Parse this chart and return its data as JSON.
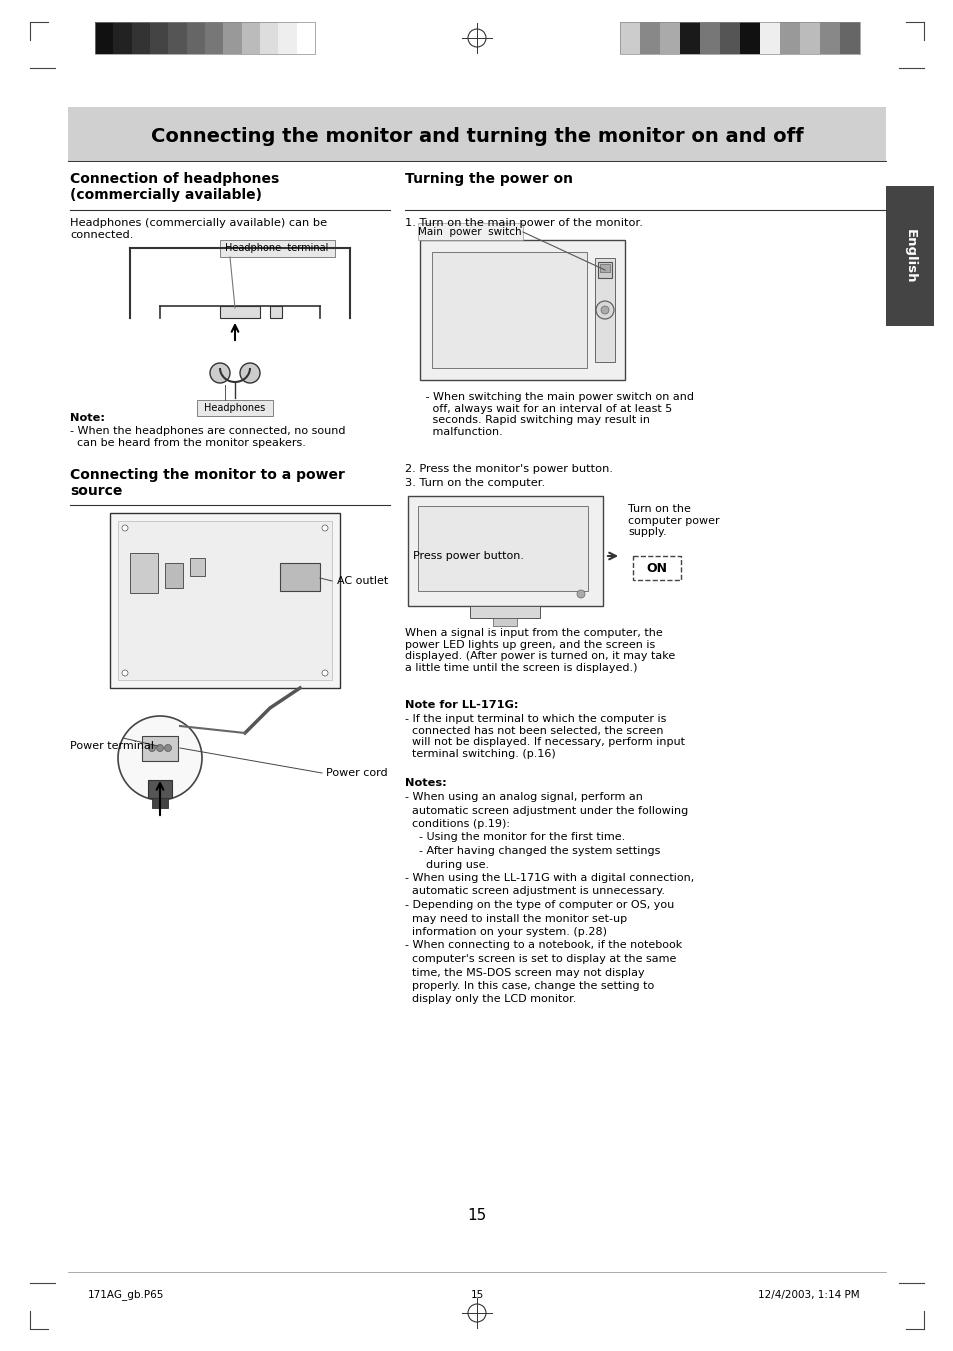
{
  "page_bg": "#ffffff",
  "header_bg": "#d0d0d0",
  "header_text": "Connecting the monitor and turning the monitor on and off",
  "sidebar_bg": "#444444",
  "sidebar_text": "English",
  "section1_title": "Connection of headphones\n(commercially available)",
  "section1_body": "Headphones (commercially available) can be\nconnected.",
  "section1_note_title": "Note:",
  "section1_note": "- When the headphones are connected, no sound\n  can be heard from the monitor speakers.",
  "section2_title": "Connecting the monitor to a power\nsource",
  "section3_title": "Turning the power on",
  "step1": "1. Turn on the main power of the monitor.",
  "main_power_switch": "Main  power  switch",
  "step1_note": "   - When switching the main power switch on and\n     off, always wait for an interval of at least 5\n     seconds. Rapid switching may result in\n     malfunction.",
  "step2": "2. Press the monitor's power button.",
  "step3": "3. Turn on the computer.",
  "press_power_btn": "Press power button.",
  "turn_on_computer": "Turn on the\ncomputer power\nsupply.",
  "signal_note": "When a signal is input from the computer, the\npower LED lights up green, and the screen is\ndisplayed. (After power is turned on, it may take\na little time until the screen is displayed.)",
  "note_ll171g_title": "Note for LL-171G:",
  "note_ll171g": "- If the input terminal to which the computer is\n  connected has not been selected, the screen\n  will not be displayed. If necessary, perform input\n  terminal switching. (p.16)",
  "notes_title": "Notes:",
  "notes_line1": "- When using an analog signal, perform an",
  "notes_line2": "  automatic screen adjustment under the following",
  "notes_line3": "  conditions (p.19):",
  "notes_line4": "    - Using the monitor for the first time.",
  "notes_line5": "    - After having changed the system settings",
  "notes_line6": "      during use.",
  "notes_line7": "- When using the LL-171G with a digital connection,",
  "notes_line8": "  automatic screen adjustment is unnecessary.",
  "notes_line9": "- Depending on the type of computer or OS, you",
  "notes_line10": "  may need to install the monitor set-up",
  "notes_line11": "  information on your system. (p.28)",
  "notes_line12": "- When connecting to a notebook, if the notebook",
  "notes_line13": "  computer's screen is set to display at the same",
  "notes_line14": "  time, the MS-DOS screen may not display",
  "notes_line15": "  properly. In this case, change the setting to",
  "notes_line16": "  display only the LCD monitor.",
  "page_number": "15",
  "footer_left": "171AG_gb.P65",
  "footer_center": "15",
  "footer_right": "12/4/2003, 1:14 PM",
  "headphone_terminal_label": "Headphone  terminal",
  "headphones_label": "Headphones",
  "power_terminal_label": "Power terminal",
  "ac_outlet_label": "AC outlet",
  "power_cord_label": "Power cord",
  "strip1_colors": [
    "#111111",
    "#222222",
    "#333333",
    "#444444",
    "#555555",
    "#666666",
    "#777777",
    "#999999",
    "#bbbbbb",
    "#dddddd",
    "#eeeeee",
    "#ffffff"
  ],
  "strip2_colors": [
    "#cccccc",
    "#888888",
    "#aaaaaa",
    "#1a1a1a",
    "#777777",
    "#555555",
    "#111111",
    "#eeeeee",
    "#999999",
    "#bbbbbb",
    "#888888",
    "#666666"
  ]
}
